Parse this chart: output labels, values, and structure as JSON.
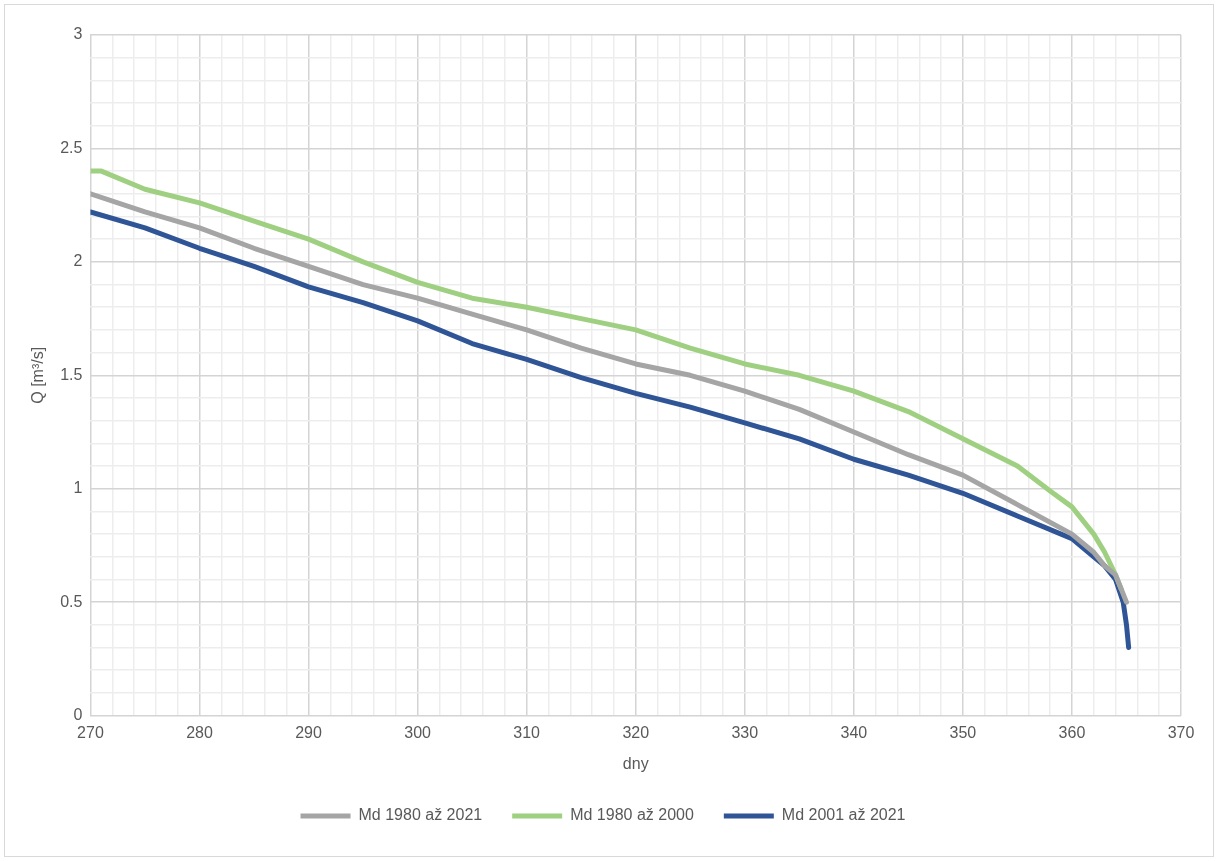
{
  "chart_data": {
    "type": "line",
    "xlabel": "dny",
    "ylabel": "Q [m³/s]",
    "xlim": [
      270,
      370
    ],
    "xticks": [
      270,
      {
        "value": 272,
        "label": null
      },
      {
        "value": 274,
        "label": null
      },
      {
        "value": 276,
        "label": null
      },
      {
        "value": 278,
        "label": null
      },
      280,
      {
        "value": 282,
        "label": null
      },
      {
        "value": 284,
        "label": null
      },
      {
        "value": 286,
        "label": null
      },
      {
        "value": 288,
        "label": null
      },
      290,
      {
        "value": 292,
        "label": null
      },
      {
        "value": 294,
        "label": null
      },
      {
        "value": 296,
        "label": null
      },
      {
        "value": 298,
        "label": null
      },
      300,
      {
        "value": 302,
        "label": null
      },
      {
        "value": 304,
        "label": null
      },
      {
        "value": 306,
        "label": null
      },
      {
        "value": 308,
        "label": null
      },
      310,
      {
        "value": 312,
        "label": null
      },
      {
        "value": 314,
        "label": null
      },
      {
        "value": 316,
        "label": null
      },
      {
        "value": 318,
        "label": null
      },
      320,
      {
        "value": 322,
        "label": null
      },
      {
        "value": 324,
        "label": null
      },
      {
        "value": 326,
        "label": null
      },
      {
        "value": 328,
        "label": null
      },
      330,
      {
        "value": 332,
        "label": null
      },
      {
        "value": 334,
        "label": null
      },
      {
        "value": 336,
        "label": null
      },
      {
        "value": 338,
        "label": null
      },
      340,
      {
        "value": 342,
        "label": null
      },
      {
        "value": 344,
        "label": null
      },
      {
        "value": 346,
        "label": null
      },
      {
        "value": 348,
        "label": null
      },
      350,
      {
        "value": 352,
        "label": null
      },
      {
        "value": 354,
        "label": null
      },
      {
        "value": 356,
        "label": null
      },
      {
        "value": 358,
        "label": null
      },
      360,
      {
        "value": 362,
        "label": null
      },
      {
        "value": 364,
        "label": null
      },
      {
        "value": 366,
        "label": null
      },
      {
        "value": 368,
        "label": null
      },
      370
    ],
    "ylim": [
      0,
      3
    ],
    "yticks": [
      0,
      {
        "value": 0.1,
        "label": null
      },
      {
        "value": 0.2,
        "label": null
      },
      {
        "value": 0.3,
        "label": null
      },
      {
        "value": 0.4,
        "label": null
      },
      0.5,
      {
        "value": 0.6,
        "label": null
      },
      {
        "value": 0.7,
        "label": null
      },
      {
        "value": 0.8,
        "label": null
      },
      {
        "value": 0.9,
        "label": null
      },
      1,
      {
        "value": 1.1,
        "label": null
      },
      {
        "value": 1.2,
        "label": null
      },
      {
        "value": 1.3,
        "label": null
      },
      {
        "value": 1.4,
        "label": null
      },
      1.5,
      {
        "value": 1.6,
        "label": null
      },
      {
        "value": 1.7,
        "label": null
      },
      {
        "value": 1.8,
        "label": null
      },
      {
        "value": 1.9,
        "label": null
      },
      2,
      {
        "value": 2.1,
        "label": null
      },
      {
        "value": 2.2,
        "label": null
      },
      {
        "value": 2.3,
        "label": null
      },
      {
        "value": 2.4,
        "label": null
      },
      2.5,
      {
        "value": 2.6,
        "label": null
      },
      {
        "value": 2.7,
        "label": null
      },
      {
        "value": 2.8,
        "label": null
      },
      {
        "value": 2.9,
        "label": null
      },
      3
    ],
    "grid": true,
    "legend": "bottom",
    "series": [
      {
        "name": "Md 1980 až 2021",
        "color": "#a5a5a5",
        "x": [
          270,
          275,
          280,
          285,
          290,
          295,
          300,
          305,
          310,
          315,
          320,
          325,
          330,
          335,
          340,
          345,
          350,
          355,
          360,
          362,
          363,
          364,
          365
        ],
        "values": [
          2.3,
          2.22,
          2.15,
          2.06,
          1.98,
          1.9,
          1.84,
          1.77,
          1.7,
          1.62,
          1.55,
          1.5,
          1.43,
          1.35,
          1.25,
          1.15,
          1.06,
          0.93,
          0.8,
          0.72,
          0.66,
          0.62,
          0.5
        ]
      },
      {
        "name": "Md 1980 až 2000",
        "color": "#9fd082",
        "x": [
          270,
          271,
          275,
          280,
          285,
          290,
          295,
          300,
          305,
          310,
          315,
          320,
          325,
          330,
          335,
          340,
          345,
          350,
          355,
          358,
          360,
          362,
          363,
          364,
          364.5
        ],
        "values": [
          2.4,
          2.4,
          2.32,
          2.26,
          2.18,
          2.1,
          2.0,
          1.91,
          1.84,
          1.8,
          1.75,
          1.7,
          1.62,
          1.55,
          1.5,
          1.43,
          1.34,
          1.22,
          1.1,
          0.99,
          0.92,
          0.8,
          0.72,
          0.62,
          0.56
        ]
      },
      {
        "name": "Md 2001 až 2021",
        "color": "#2f5597",
        "x": [
          270,
          275,
          280,
          285,
          290,
          295,
          300,
          305,
          310,
          315,
          320,
          325,
          330,
          335,
          340,
          345,
          350,
          355,
          360,
          362,
          363,
          364,
          364.7,
          365,
          365.2
        ],
        "values": [
          2.22,
          2.15,
          2.06,
          1.98,
          1.89,
          1.82,
          1.74,
          1.64,
          1.57,
          1.49,
          1.42,
          1.36,
          1.29,
          1.22,
          1.13,
          1.06,
          0.98,
          0.88,
          0.78,
          0.7,
          0.66,
          0.6,
          0.5,
          0.4,
          0.3
        ]
      }
    ]
  }
}
